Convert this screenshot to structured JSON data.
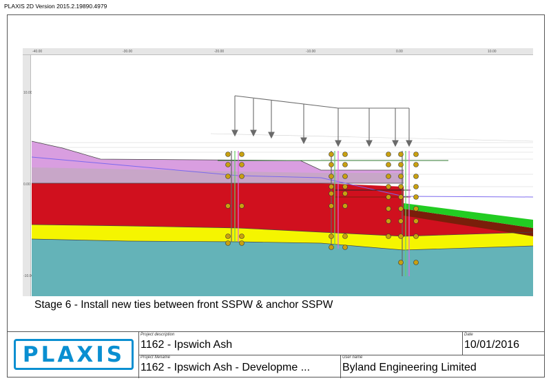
{
  "app": {
    "title": "PLAXIS 2D Version 2015.2.19890.4979"
  },
  "ruler": {
    "x_labels": [
      "-40.00",
      "-30.00",
      "-20.00",
      "-10.00",
      "0.00",
      "10.00"
    ],
    "y_labels": [
      "10.00",
      "0.00",
      "-10.00"
    ]
  },
  "stage": {
    "caption": "Stage 6 - Install new ties between front SSPW & anchor SSPW"
  },
  "title_block": {
    "logo": "PLAXIS",
    "project_description_label": "Project description",
    "project_description": "1162 - Ipswich Ash",
    "date_label": "Date",
    "date": "10/01/2016",
    "project_filename_label": "Project filename",
    "project_filename": "1162 - Ipswich Ash - Developme ...",
    "user_name_label": "User name",
    "user_name": "Byland Engineering Limited"
  },
  "colors": {
    "soil_top": "#d99ee0",
    "soil_mid": "#c8a6c8",
    "soil_red": "#d0101e",
    "soil_yellow": "#f5f500",
    "soil_bottom": "#64b3b8",
    "soil_brown": "#7a1e0a",
    "soil_green": "#22cc22",
    "plaxis_blue": "#0a8fd1"
  }
}
